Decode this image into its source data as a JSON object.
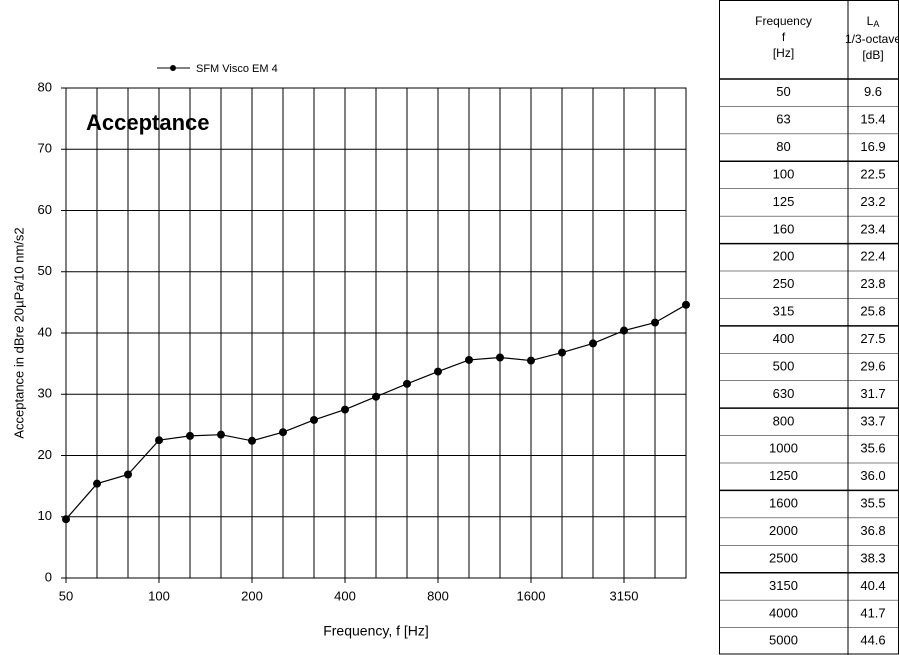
{
  "chart_data": {
    "type": "line",
    "annotation": "Acceptance",
    "x_label": "Frequency, f [Hz]",
    "y_label": "Acceptance in  dBre 20µPa/10 nm/s2",
    "categories": [
      "50",
      null,
      null,
      "100",
      null,
      null,
      "200",
      null,
      null,
      "400",
      null,
      null,
      "800",
      null,
      null,
      "1600",
      null,
      null,
      "3150",
      null,
      null
    ],
    "series": [
      {
        "name": "SFM Visco EM 4",
        "color": "#000000",
        "values": [
          9.6,
          15.4,
          16.9,
          22.5,
          23.2,
          23.4,
          22.4,
          23.8,
          25.8,
          27.5,
          29.6,
          31.7,
          33.7,
          35.6,
          36.0,
          35.5,
          36.8,
          38.3,
          40.4,
          41.7,
          44.6
        ]
      }
    ],
    "ylim": [
      0,
      80
    ],
    "yticks": [
      0,
      10,
      20,
      30,
      40,
      50,
      60,
      70,
      80
    ],
    "grid": true
  },
  "table": {
    "header": [
      {
        "lines": [
          "Frequency",
          "f",
          "[Hz]"
        ]
      },
      {
        "symbol": "L",
        "subscript": "A",
        "lines": [
          "1/3-octave",
          "[dB]"
        ]
      }
    ],
    "rows": [
      [
        "50",
        "9.6"
      ],
      [
        "63",
        "15.4"
      ],
      [
        "80",
        "16.9"
      ],
      [
        "100",
        "22.5"
      ],
      [
        "125",
        "23.2"
      ],
      [
        "160",
        "23.4"
      ],
      [
        "200",
        "22.4"
      ],
      [
        "250",
        "23.8"
      ],
      [
        "315",
        "25.8"
      ],
      [
        "400",
        "27.5"
      ],
      [
        "500",
        "29.6"
      ],
      [
        "630",
        "31.7"
      ],
      [
        "800",
        "33.7"
      ],
      [
        "1000",
        "35.6"
      ],
      [
        "1250",
        "36.0"
      ],
      [
        "1600",
        "35.5"
      ],
      [
        "2000",
        "36.8"
      ],
      [
        "2500",
        "38.3"
      ],
      [
        "3150",
        "40.4"
      ],
      [
        "4000",
        "41.7"
      ],
      [
        "5000",
        "44.6"
      ]
    ]
  }
}
